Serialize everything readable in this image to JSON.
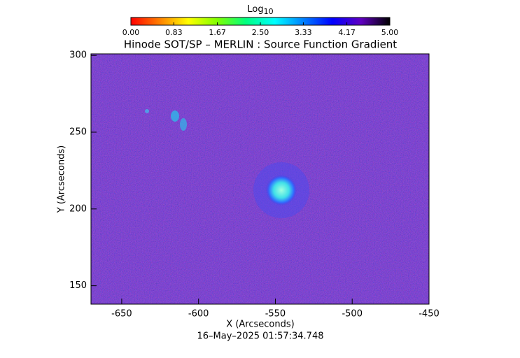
{
  "chart_data": {
    "type": "image",
    "title": "Hinode SOT/SP – MERLIN : Source Function Gradient",
    "xlabel": "X (Arcseconds)",
    "ylabel": "Y (Arcseconds)",
    "footer": "16–May–2025 01:57:34.748",
    "xlim": [
      -670,
      -450
    ],
    "ylim": [
      138,
      301
    ],
    "xticks": [
      -650,
      -600,
      -550,
      -500,
      -450
    ],
    "yticks": [
      150,
      200,
      250,
      300
    ],
    "colorbar": {
      "label": "Log",
      "label_sub": "10",
      "clim": [
        0,
        5
      ],
      "colors": [
        "#ff0000",
        "#ff8000",
        "#ffff00",
        "#80ff00",
        "#00ff80",
        "#00ffff",
        "#0080ff",
        "#0000ff",
        "#6000c0",
        "#000000"
      ],
      "ticks": [
        {
          "value": 0,
          "label": "0.00"
        },
        {
          "value": 0.83,
          "label": "0.83"
        },
        {
          "value": 1.67,
          "label": "1.67"
        },
        {
          "value": 2.5,
          "label": "2.50"
        },
        {
          "value": 3.33,
          "label": "3.33"
        },
        {
          "value": 4.17,
          "label": "4.17"
        },
        {
          "value": 5,
          "label": "5.00"
        }
      ]
    }
  }
}
